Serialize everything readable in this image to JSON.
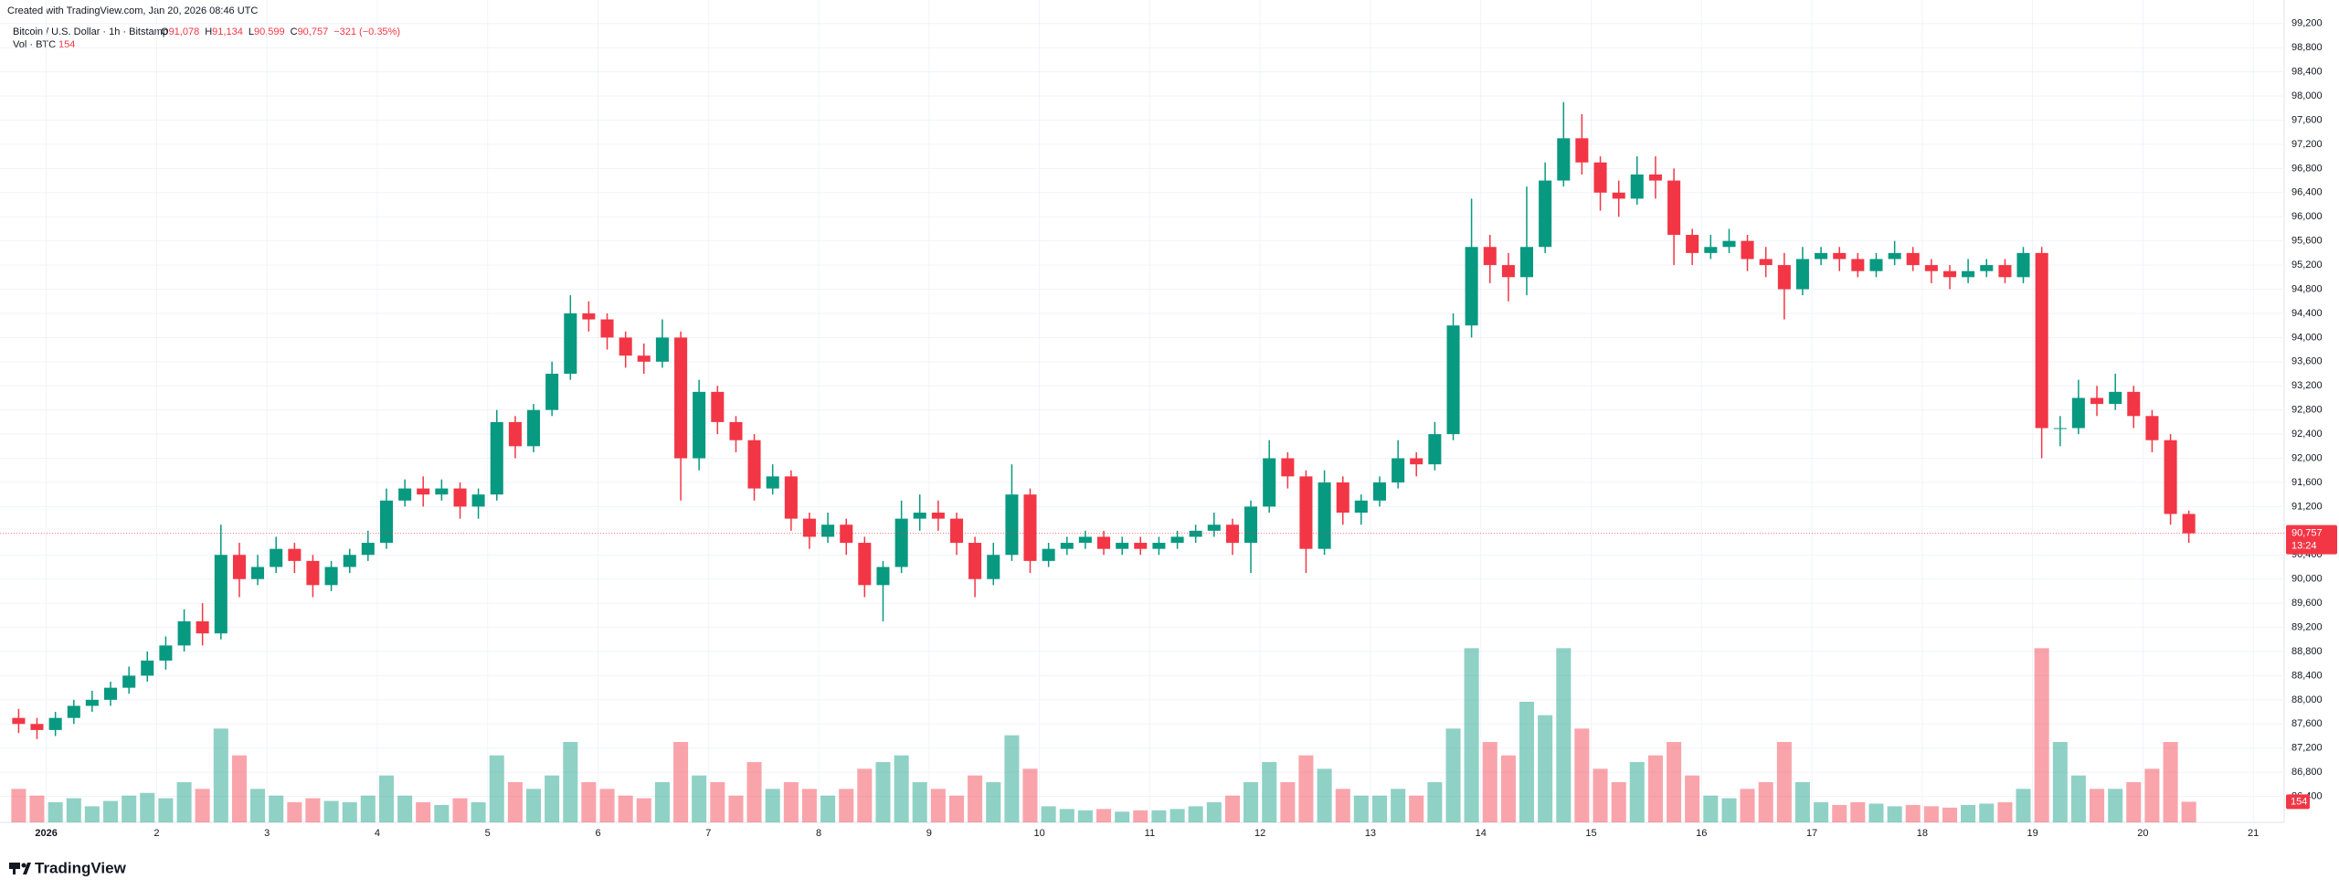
{
  "header": {
    "credit": "Created with TradingView.com, Jan 20, 2026 08:46 UTC",
    "symbol": "Bitcoin / U.S. Dollar · 1h · Bitstamp",
    "ohlc": [
      {
        "key": "O",
        "value": "91,078"
      },
      {
        "key": "H",
        "value": "91,134"
      },
      {
        "key": "L",
        "value": "90,599"
      },
      {
        "key": "C",
        "value": "90,757"
      }
    ],
    "change": "−321 (−0.35%)",
    "volume_name": "Vol · BTC",
    "volume_value": "154"
  },
  "footer": {
    "logo": "TradingView"
  },
  "chart_data": {
    "type": "candlestick",
    "x": [
      0.667,
      0.833,
      1,
      1.167,
      1.333,
      1.5,
      1.667,
      1.833,
      2,
      2.167,
      2.333,
      2.5,
      2.667,
      2.833,
      3,
      3.167,
      3.333,
      3.5,
      3.667,
      3.833,
      4,
      4.167,
      4.333,
      4.5,
      4.667,
      4.833,
      5,
      5.167,
      5.333,
      5.5,
      5.667,
      5.833,
      6,
      6.167,
      6.333,
      6.5,
      6.667,
      6.833,
      7,
      7.167,
      7.333,
      7.5,
      7.667,
      7.833,
      8,
      8.167,
      8.333,
      8.5,
      8.667,
      8.833,
      9,
      9.167,
      9.333,
      9.5,
      9.667,
      9.833,
      10,
      10.167,
      10.333,
      10.5,
      10.667,
      10.833,
      11,
      11.167,
      11.333,
      11.5,
      11.667,
      11.833,
      12,
      12.167,
      12.333,
      12.5,
      12.667,
      12.833,
      13,
      13.167,
      13.333,
      13.5,
      13.667,
      13.833,
      14,
      14.167,
      14.333,
      14.5,
      14.667,
      14.833,
      15,
      15.167,
      15.333,
      15.5,
      15.667,
      15.833,
      16,
      16.167,
      16.333,
      16.5,
      16.667,
      16.833,
      17,
      17.167,
      17.333,
      17.5,
      17.667,
      17.833,
      18,
      18.167,
      18.333,
      18.5,
      18.667,
      18.833,
      19,
      19.167,
      19.333,
      19.5,
      19.667,
      19.833,
      20,
      20.167,
      20.333
    ],
    "open": [
      87700,
      87600,
      87500,
      87700,
      87900,
      88000,
      88200,
      88400,
      88650,
      88900,
      89300,
      89100,
      90400,
      90000,
      90200,
      90500,
      90300,
      89900,
      90200,
      90400,
      90600,
      91300,
      91500,
      91400,
      91500,
      91200,
      91400,
      92600,
      92200,
      92800,
      93400,
      94400,
      94300,
      94000,
      93700,
      93600,
      94000,
      92000,
      93100,
      92600,
      92300,
      91500,
      91700,
      91000,
      90700,
      90900,
      90600,
      89900,
      90200,
      91000,
      91100,
      91000,
      90600,
      90000,
      90400,
      91400,
      90300,
      90500,
      90600,
      90700,
      90500,
      90600,
      90500,
      90600,
      90700,
      90800,
      90900,
      90600,
      91200,
      92000,
      91700,
      90500,
      91600,
      91100,
      91300,
      91600,
      92000,
      91900,
      92400,
      94200,
      95500,
      95200,
      95000,
      95500,
      96600,
      97300,
      96900,
      96400,
      96300,
      96700,
      96600,
      95700,
      95400,
      95500,
      95600,
      95300,
      95200,
      94800,
      95300,
      95400,
      95300,
      95100,
      95300,
      95400,
      95200,
      95100,
      95000,
      95100,
      95200,
      95000,
      95400,
      92500,
      92500,
      93000,
      92900,
      93100,
      92700,
      92300,
      91078
    ],
    "high": [
      87850,
      87700,
      87800,
      88000,
      88150,
      88300,
      88550,
      88800,
      89050,
      89500,
      89600,
      90900,
      90600,
      90400,
      90700,
      90600,
      90400,
      90300,
      90500,
      90800,
      91500,
      91650,
      91700,
      91650,
      91600,
      91500,
      92800,
      92700,
      92900,
      93600,
      94700,
      94600,
      94400,
      94100,
      93900,
      94300,
      94100,
      93300,
      93200,
      92700,
      92400,
      91900,
      91800,
      91100,
      91100,
      91000,
      90700,
      90300,
      91300,
      91400,
      91300,
      91100,
      90700,
      90600,
      91900,
      91500,
      90600,
      90700,
      90800,
      90800,
      90700,
      90700,
      90700,
      90800,
      90900,
      91100,
      91000,
      91300,
      92300,
      92100,
      91800,
      91800,
      91700,
      91400,
      91700,
      92300,
      92100,
      92600,
      94400,
      96300,
      95700,
      95400,
      96500,
      96900,
      97900,
      97700,
      97000,
      96600,
      97000,
      97000,
      96800,
      95800,
      95700,
      95800,
      95700,
      95500,
      95400,
      95500,
      95500,
      95500,
      95400,
      95400,
      95600,
      95500,
      95300,
      95200,
      95300,
      95300,
      95300,
      95500,
      95500,
      92700,
      93300,
      93200,
      93400,
      93200,
      92800,
      92400,
      91134
    ],
    "low": [
      87450,
      87350,
      87400,
      87600,
      87800,
      87900,
      88100,
      88300,
      88500,
      88800,
      88900,
      89000,
      89700,
      89900,
      90100,
      90100,
      89700,
      89800,
      90100,
      90300,
      90500,
      91200,
      91200,
      91300,
      91000,
      91000,
      91300,
      92000,
      92100,
      92700,
      93300,
      94100,
      93800,
      93500,
      93400,
      93500,
      91300,
      91800,
      92400,
      92100,
      91300,
      91400,
      90800,
      90500,
      90600,
      90400,
      89700,
      89300,
      90100,
      90800,
      90800,
      90400,
      89700,
      89900,
      90300,
      90100,
      90200,
      90400,
      90500,
      90400,
      90400,
      90400,
      90400,
      90500,
      90600,
      90700,
      90400,
      90100,
      91100,
      91500,
      90100,
      90400,
      90900,
      90900,
      91200,
      91500,
      91700,
      91800,
      92300,
      94000,
      94900,
      94600,
      94700,
      95400,
      96500,
      96700,
      96100,
      96000,
      96200,
      96300,
      95200,
      95200,
      95300,
      95400,
      95100,
      95000,
      94300,
      94700,
      95200,
      95100,
      95000,
      95000,
      95200,
      95100,
      94900,
      94800,
      94900,
      95000,
      94900,
      94900,
      92000,
      92200,
      92400,
      92700,
      92800,
      92500,
      92100,
      90900,
      90599
    ],
    "close": [
      87600,
      87500,
      87700,
      87900,
      88000,
      88200,
      88400,
      88650,
      88900,
      89300,
      89100,
      90400,
      90000,
      90200,
      90500,
      90300,
      89900,
      90200,
      90400,
      90600,
      91300,
      91500,
      91400,
      91500,
      91200,
      91400,
      92600,
      92200,
      92800,
      93400,
      94400,
      94300,
      94000,
      93700,
      93600,
      94000,
      92000,
      93100,
      92600,
      92300,
      91500,
      91700,
      91000,
      90700,
      90900,
      90600,
      89900,
      90200,
      91000,
      91100,
      91000,
      90600,
      90000,
      90400,
      91400,
      90300,
      90500,
      90600,
      90700,
      90500,
      90600,
      90500,
      90600,
      90700,
      90800,
      90900,
      90600,
      91200,
      92000,
      91700,
      90500,
      91600,
      91100,
      91300,
      91600,
      92000,
      91900,
      92400,
      94200,
      95500,
      95200,
      95000,
      95500,
      96600,
      97300,
      96900,
      96400,
      96300,
      96700,
      96600,
      95700,
      95400,
      95500,
      95600,
      95300,
      95200,
      94800,
      95300,
      95400,
      95300,
      95100,
      95300,
      95400,
      95200,
      95100,
      95000,
      95100,
      95200,
      95000,
      95400,
      92500,
      92500,
      93000,
      92900,
      93100,
      92700,
      92300,
      91078,
      90757
    ],
    "volume": [
      250,
      200,
      150,
      180,
      120,
      160,
      200,
      220,
      180,
      300,
      250,
      700,
      500,
      250,
      200,
      150,
      180,
      160,
      150,
      200,
      350,
      200,
      150,
      130,
      180,
      150,
      500,
      300,
      250,
      350,
      600,
      300,
      250,
      200,
      180,
      300,
      600,
      350,
      300,
      200,
      450,
      250,
      300,
      250,
      200,
      250,
      400,
      450,
      500,
      300,
      250,
      200,
      350,
      300,
      650,
      400,
      120,
      100,
      90,
      100,
      80,
      90,
      90,
      100,
      120,
      150,
      200,
      300,
      450,
      300,
      500,
      400,
      250,
      200,
      200,
      250,
      200,
      300,
      700,
      1300,
      600,
      500,
      900,
      800,
      1300,
      700,
      400,
      300,
      450,
      500,
      600,
      350,
      200,
      180,
      250,
      300,
      600,
      300,
      150,
      130,
      150,
      140,
      120,
      130,
      120,
      110,
      130,
      140,
      150,
      250,
      1300,
      600,
      350,
      250,
      250,
      300,
      400,
      600,
      154
    ],
    "up_color": "#089981",
    "down_color": "#f23645",
    "xlim": [
      0.581,
      21.28
    ],
    "xticks": [
      {
        "value": 1,
        "label": "2026"
      },
      2,
      3,
      4,
      5,
      6,
      7,
      8,
      9,
      10,
      11,
      12,
      13,
      14,
      15,
      16,
      17,
      18,
      19,
      20,
      21
    ],
    "ylim": [
      85970,
      99590
    ],
    "yticks": [
      {
        "value": 86400,
        "label": "86,400"
      },
      {
        "value": 86800,
        "label": "86,800"
      },
      {
        "value": 87200,
        "label": "87,200"
      },
      {
        "value": 87600,
        "label": "87,600"
      },
      {
        "value": 88000,
        "label": "88,000"
      },
      {
        "value": 88400,
        "label": "88,400"
      },
      {
        "value": 88800,
        "label": "88,800"
      },
      {
        "value": 89200,
        "label": "89,200"
      },
      {
        "value": 89600,
        "label": "89,600"
      },
      {
        "value": 90000,
        "label": "90,000"
      },
      {
        "value": 90400,
        "label": "90,400"
      },
      {
        "value": 91200,
        "label": "91,200"
      },
      {
        "value": 91600,
        "label": "91,600"
      },
      {
        "value": 92000,
        "label": "92,000"
      },
      {
        "value": 92400,
        "label": "92,400"
      },
      {
        "value": 92800,
        "label": "92,800"
      },
      {
        "value": 93200,
        "label": "93,200"
      },
      {
        "value": 93600,
        "label": "93,600"
      },
      {
        "value": 94000,
        "label": "94,000"
      },
      {
        "value": 94400,
        "label": "94,400"
      },
      {
        "value": 94800,
        "label": "94,800"
      },
      {
        "value": 95200,
        "label": "95,200"
      },
      {
        "value": 95600,
        "label": "95,600"
      },
      {
        "value": 96000,
        "label": "96,000"
      },
      {
        "value": 96400,
        "label": "96,400"
      },
      {
        "value": 96800,
        "label": "96,800"
      },
      {
        "value": 97200,
        "label": "97,200"
      },
      {
        "value": 97600,
        "label": "97,600"
      },
      {
        "value": 98000,
        "label": "98,000"
      },
      {
        "value": 98400,
        "label": "98,400"
      },
      {
        "value": 98800,
        "label": "98,800"
      },
      {
        "value": 99200,
        "label": "99,200"
      }
    ],
    "vlim": [
      0,
      1500
    ],
    "last_price": {
      "value": 90757,
      "label": "90,757"
    },
    "countdown": "13:24",
    "last_volume_label": "154",
    "grid": true
  }
}
